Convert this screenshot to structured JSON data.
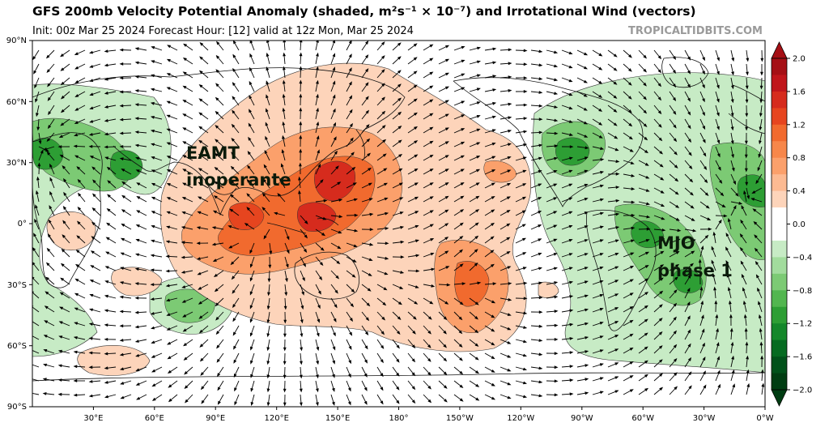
{
  "header": {
    "title": "GFS 200mb Velocity Potential Anomaly (shaded, m²s⁻¹ × 10⁻⁷) and Irrotational Wind (vectors)",
    "subtitle": "Init: 00z Mar 25 2024   Forecast Hour: [12]   valid at 12z Mon, Mar 25 2024",
    "credit": "TROPICALTIDBITS.COM"
  },
  "axes": {
    "lat_labels": [
      "90°N",
      "60°N",
      "30°N",
      "0°",
      "30°S",
      "60°S",
      "90°S"
    ],
    "lon_labels": [
      "30°E",
      "60°E",
      "90°E",
      "120°E",
      "150°E",
      "180°",
      "150°W",
      "120°W",
      "90°W",
      "60°W",
      "30°W",
      "0°W"
    ]
  },
  "colorbar": {
    "labels": [
      "2.0",
      "1.6",
      "1.2",
      "0.8",
      "0.4",
      "0.0",
      "−0.4",
      "−0.8",
      "−1.2",
      "−1.6",
      "−2.0"
    ],
    "colors": [
      "#a50f15",
      "#c0151b",
      "#d62b1d",
      "#e6451f",
      "#f16a2e",
      "#f7874a",
      "#fba06b",
      "#fcba92",
      "#fdd4ba",
      "#ffffff",
      "#ffffff",
      "#c7ebc5",
      "#a2dc9d",
      "#7cca74",
      "#52b64f",
      "#2d9e34",
      "#14872a",
      "#056b21",
      "#00511a",
      "#003d12"
    ]
  },
  "annotations": {
    "eamt_line1": "EAMT",
    "eamt_line2": "inoperante",
    "mjo_line1": "MJO",
    "mjo_line2": "phase 1"
  }
}
